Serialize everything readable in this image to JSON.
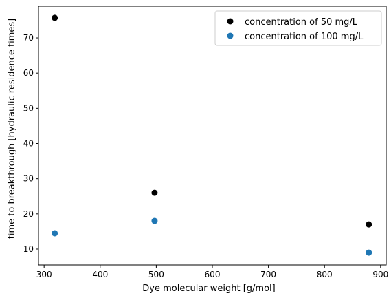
{
  "chart_data": {
    "type": "scatter",
    "title": "",
    "xlabel": "Dye molecular weight [g/mol]",
    "ylabel": "time to breakthrough [hydraulic residence times]",
    "xlim": [
      290,
      910
    ],
    "ylim": [
      5.5,
      79
    ],
    "xticks": [
      300,
      400,
      500,
      600,
      700,
      800,
      900
    ],
    "yticks": [
      10,
      20,
      30,
      40,
      50,
      60,
      70
    ],
    "grid": false,
    "legend_position": "top-right",
    "series": [
      {
        "name": "concentration of 50 mg/L",
        "color": "#000000",
        "x": [
          319,
          497,
          879
        ],
        "y": [
          75.7,
          26.0,
          17.0
        ]
      },
      {
        "name": "concentration of 100 mg/L",
        "color": "#1f77b4",
        "x": [
          319,
          497,
          879
        ],
        "y": [
          14.5,
          18.0,
          9.0
        ]
      }
    ]
  }
}
